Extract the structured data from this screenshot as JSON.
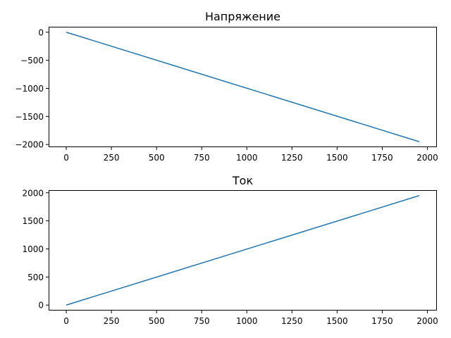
{
  "chart_data": [
    {
      "type": "line",
      "title": "Напряжение",
      "xlabel": "",
      "ylabel": "",
      "grid": false,
      "xlim": [
        -97.75,
        2052.75
      ],
      "ylim": [
        -2047.5,
        97.5
      ],
      "xticks": [
        0,
        250,
        500,
        750,
        1000,
        1250,
        1500,
        1750,
        2000
      ],
      "xtick_labels": [
        "0",
        "250",
        "500",
        "750",
        "1000",
        "1250",
        "1500",
        "1750",
        "2000"
      ],
      "yticks": [
        0,
        -500,
        -1000,
        -1500,
        -2000
      ],
      "ytick_labels": [
        "0",
        "−500",
        "−1000",
        "−1500",
        "−2000"
      ],
      "color": "#1f77b4",
      "series": [
        {
          "x": [
            0,
            1955
          ],
          "y": [
            0,
            -1950
          ]
        }
      ]
    },
    {
      "type": "line",
      "title": "Ток",
      "xlabel": "",
      "ylabel": "",
      "grid": false,
      "xlim": [
        -97.75,
        2052.75
      ],
      "ylim": [
        -97.5,
        2047.5
      ],
      "xticks": [
        0,
        250,
        500,
        750,
        1000,
        1250,
        1500,
        1750,
        2000
      ],
      "xtick_labels": [
        "0",
        "250",
        "500",
        "750",
        "1000",
        "1250",
        "1500",
        "1750",
        "2000"
      ],
      "yticks": [
        0,
        500,
        1000,
        1500,
        2000
      ],
      "ytick_labels": [
        "0",
        "500",
        "1000",
        "1500",
        "2000"
      ],
      "color": "#1f77b4",
      "series": [
        {
          "x": [
            0,
            1955
          ],
          "y": [
            0,
            1950
          ]
        }
      ]
    }
  ]
}
